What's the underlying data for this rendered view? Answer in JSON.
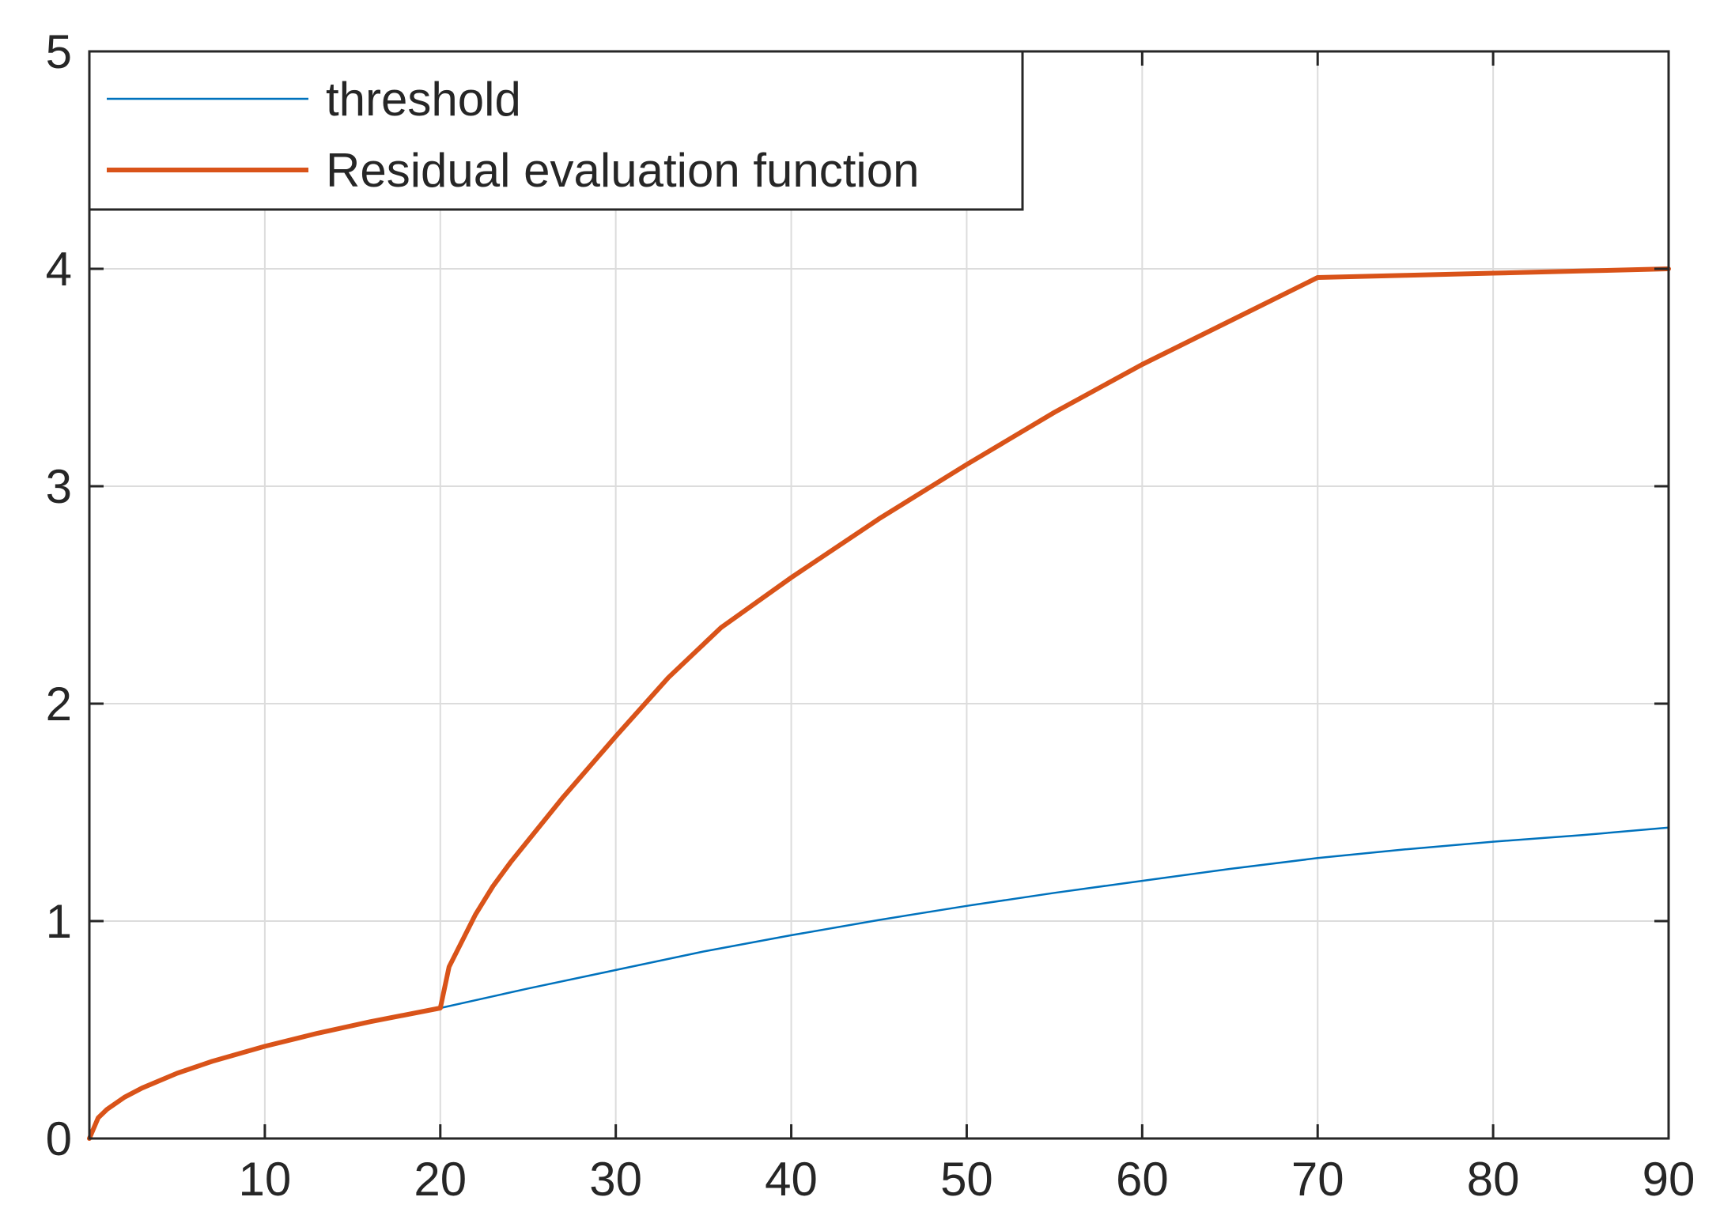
{
  "chart_data": {
    "type": "line",
    "xlim": [
      0,
      90
    ],
    "ylim": [
      0,
      5
    ],
    "x_ticks": [
      10,
      20,
      30,
      40,
      50,
      60,
      70,
      80,
      90
    ],
    "y_ticks": [
      0,
      1,
      2,
      3,
      4,
      5
    ],
    "grid": true,
    "legend_position": "top-left",
    "series": [
      {
        "name": "threshold",
        "color": "#0072BD",
        "x": [
          0,
          0.5,
          1,
          2,
          3,
          5,
          7,
          10,
          13,
          16,
          20,
          25,
          30,
          35,
          40,
          45,
          50,
          55,
          60,
          65,
          70,
          75,
          80,
          85,
          90
        ],
        "y": [
          0,
          0.095,
          0.134,
          0.19,
          0.232,
          0.3,
          0.355,
          0.424,
          0.484,
          0.537,
          0.6,
          0.69,
          0.775,
          0.86,
          0.935,
          1.005,
          1.07,
          1.13,
          1.185,
          1.24,
          1.29,
          1.33,
          1.365,
          1.395,
          1.43
        ]
      },
      {
        "name": "Residual evaluation function",
        "color": "#D95319",
        "x": [
          0,
          0.5,
          1,
          2,
          3,
          5,
          7,
          10,
          13,
          16,
          20,
          20.5,
          21,
          22,
          23,
          24,
          25,
          27,
          30,
          33,
          36,
          40,
          45,
          50,
          55,
          60,
          65,
          70,
          75,
          80,
          85,
          90
        ],
        "y": [
          0,
          0.095,
          0.134,
          0.19,
          0.232,
          0.3,
          0.355,
          0.424,
          0.484,
          0.537,
          0.6,
          0.79,
          0.87,
          1.03,
          1.16,
          1.27,
          1.37,
          1.57,
          1.85,
          2.12,
          2.35,
          2.58,
          2.85,
          3.1,
          3.34,
          3.56,
          3.76,
          3.96,
          3.97,
          3.98,
          3.99,
          4.0
        ]
      }
    ]
  }
}
